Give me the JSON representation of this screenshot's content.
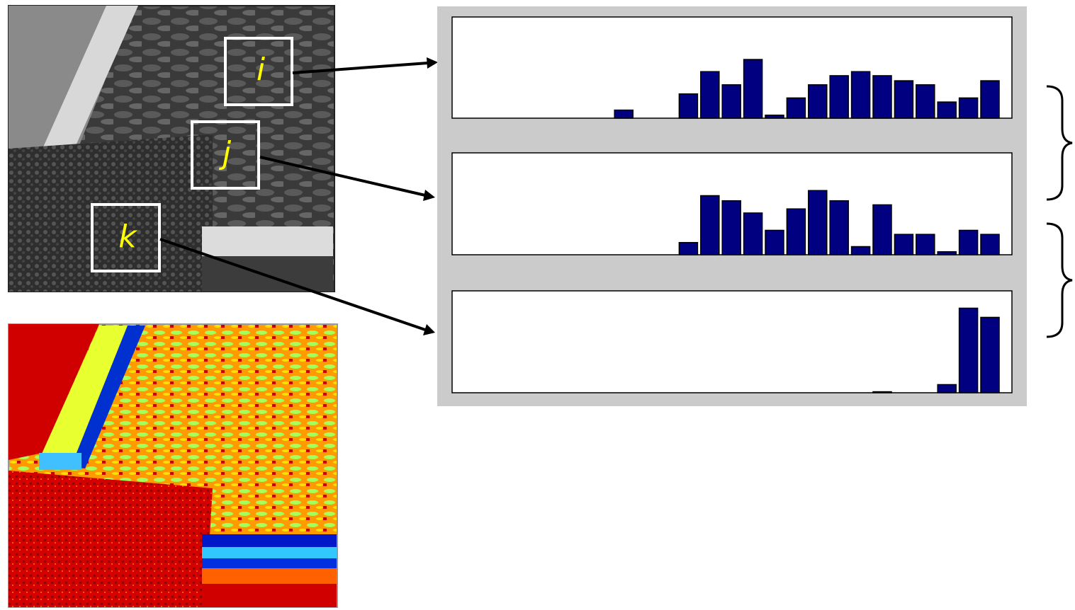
{
  "labels": [
    "i",
    "j",
    "k"
  ],
  "chart_data": [
    {
      "type": "bar",
      "color": "#000080",
      "ylim": [
        0,
        1
      ],
      "values": [
        0,
        0,
        0,
        0,
        0,
        0,
        0,
        0,
        0.08,
        0,
        0,
        0.24,
        0.46,
        0.33,
        0.58,
        0.03,
        0.2,
        0.33,
        0.42,
        0.46,
        0.42,
        0.37,
        0.33,
        0.16,
        0.2,
        0.37
      ]
    },
    {
      "type": "bar",
      "color": "#000080",
      "ylim": [
        0,
        1
      ],
      "values": [
        0,
        0,
        0,
        0,
        0,
        0,
        0,
        0,
        0,
        0,
        0,
        0.12,
        0.58,
        0.53,
        0.41,
        0.24,
        0.45,
        0.63,
        0.53,
        0.08,
        0.49,
        0.2,
        0.2,
        0.03,
        0.24,
        0.2
      ]
    },
    {
      "type": "bar",
      "color": "#000080",
      "ylim": [
        0,
        1
      ],
      "values": [
        0,
        0,
        0,
        0,
        0,
        0,
        0,
        0,
        0,
        0,
        0,
        0,
        0,
        0,
        0,
        0,
        0,
        0,
        0,
        0,
        0.01,
        0,
        0,
        0.08,
        0.83,
        0.74
      ]
    }
  ]
}
